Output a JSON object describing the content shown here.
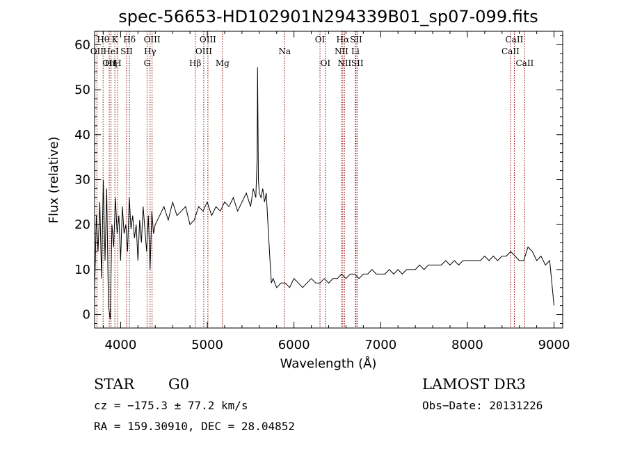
{
  "chart_data": {
    "type": "line",
    "title": "spec-56653-HD102901N294339B01_sp07-099.fits",
    "xlabel": "Wavelength (Å)",
    "ylabel": "Flux (relative)",
    "xlim": [
      3700,
      9100
    ],
    "ylim": [
      -3,
      63
    ],
    "xticks": [
      4000,
      5000,
      6000,
      7000,
      8000,
      9000
    ],
    "yticks": [
      0,
      10,
      20,
      30,
      40,
      50,
      60
    ],
    "series": [
      {
        "name": "flux",
        "x": [
          3700,
          3720,
          3740,
          3760,
          3780,
          3800,
          3820,
          3840,
          3860,
          3880,
          3900,
          3920,
          3940,
          3960,
          3980,
          4000,
          4020,
          4040,
          4060,
          4080,
          4100,
          4120,
          4140,
          4160,
          4180,
          4200,
          4220,
          4240,
          4260,
          4280,
          4300,
          4320,
          4340,
          4360,
          4380,
          4400,
          4450,
          4500,
          4550,
          4600,
          4650,
          4700,
          4750,
          4800,
          4850,
          4900,
          4950,
          5000,
          5050,
          5100,
          5150,
          5200,
          5250,
          5300,
          5350,
          5400,
          5450,
          5500,
          5530,
          5560,
          5575,
          5580,
          5590,
          5600,
          5620,
          5640,
          5660,
          5680,
          5700,
          5720,
          5740,
          5760,
          5800,
          5850,
          5900,
          5950,
          6000,
          6050,
          6100,
          6150,
          6200,
          6250,
          6300,
          6350,
          6400,
          6450,
          6500,
          6550,
          6600,
          6650,
          6700,
          6750,
          6800,
          6850,
          6900,
          6950,
          7000,
          7050,
          7100,
          7150,
          7200,
          7250,
          7300,
          7350,
          7400,
          7450,
          7500,
          7550,
          7600,
          7650,
          7700,
          7750,
          7800,
          7850,
          7900,
          7950,
          8000,
          8050,
          8100,
          8150,
          8200,
          8250,
          8300,
          8350,
          8400,
          8450,
          8500,
          8550,
          8600,
          8650,
          8700,
          8750,
          8800,
          8850,
          8900,
          8950,
          9000
        ],
        "y": [
          5,
          22,
          14,
          25,
          8,
          30,
          12,
          28,
          2,
          -1,
          20,
          15,
          26,
          18,
          22,
          12,
          24,
          18,
          20,
          14,
          26,
          19,
          22,
          17,
          20,
          12,
          21,
          16,
          24,
          19,
          14,
          22,
          10,
          23,
          18,
          20,
          22,
          24,
          21,
          25,
          22,
          23,
          24,
          20,
          21,
          24,
          23,
          25,
          22,
          24,
          23,
          25,
          24,
          26,
          23,
          25,
          27,
          24,
          28,
          26,
          35,
          55,
          30,
          27,
          26,
          28,
          25,
          27,
          20,
          13,
          7,
          8,
          6,
          7,
          7,
          6,
          8,
          7,
          6,
          7,
          8,
          7,
          7,
          8,
          7,
          8,
          8,
          9,
          8,
          9,
          9,
          8,
          9,
          9,
          10,
          9,
          9,
          9,
          10,
          9,
          10,
          9,
          10,
          10,
          10,
          11,
          10,
          11,
          11,
          11,
          11,
          12,
          11,
          12,
          11,
          12,
          12,
          12,
          12,
          12,
          13,
          12,
          13,
          12,
          13,
          13,
          14,
          13,
          12,
          12,
          15,
          14,
          12,
          13,
          11,
          12,
          2
        ]
      }
    ],
    "spectral_lines": [
      {
        "label": "OII",
        "x": 3727,
        "row": 1
      },
      {
        "label": "Hθ",
        "x": 3798,
        "row": 0
      },
      {
        "label": "OII",
        "x": 3869,
        "row": 2
      },
      {
        "label": "Hη",
        "x": 3889,
        "row": 2
      },
      {
        "label": "HeI",
        "x": 3889,
        "row": 1
      },
      {
        "label": "K",
        "x": 3934,
        "row": 0
      },
      {
        "label": "H",
        "x": 3968,
        "row": 2
      },
      {
        "label": "SII",
        "x": 4069,
        "row": 1
      },
      {
        "label": "Hδ",
        "x": 4102,
        "row": 0
      },
      {
        "label": "G",
        "x": 4305,
        "row": 2
      },
      {
        "label": "Hγ",
        "x": 4340,
        "row": 1
      },
      {
        "label": "OIII",
        "x": 4363,
        "row": 0
      },
      {
        "label": "Hβ",
        "x": 4861,
        "row": 2
      },
      {
        "label": "OIII",
        "x": 4959,
        "row": 1
      },
      {
        "label": "OIII",
        "x": 5007,
        "row": 0
      },
      {
        "label": "Mg",
        "x": 5175,
        "row": 2
      },
      {
        "label": "Na",
        "x": 5893,
        "row": 1
      },
      {
        "label": "OI",
        "x": 6300,
        "row": 0
      },
      {
        "label": "OI",
        "x": 6363,
        "row": 2
      },
      {
        "label": "NII",
        "x": 6548,
        "row": 1
      },
      {
        "label": "Hα",
        "x": 6563,
        "row": 0
      },
      {
        "label": "NII",
        "x": 6583,
        "row": 2
      },
      {
        "label": "Li",
        "x": 6708,
        "row": 1
      },
      {
        "label": "SII",
        "x": 6716,
        "row": 0
      },
      {
        "label": "SII",
        "x": 6731,
        "row": 2
      },
      {
        "label": "CaII",
        "x": 8498,
        "row": 1
      },
      {
        "label": "CaII",
        "x": 8542,
        "row": 0
      },
      {
        "label": "CaII",
        "x": 8662,
        "row": 2
      }
    ],
    "grid": false,
    "line_color": "#000000",
    "marker_color": "#8b0000"
  },
  "info": {
    "obj_class": "STAR",
    "subclass": "G0",
    "survey": "LAMOST DR3",
    "cz": "cz = −175.3 ± 77.2 km/s",
    "obs_date": "Obs−Date: 20131226",
    "coords": "RA = 159.30910, DEC =  28.04852"
  }
}
